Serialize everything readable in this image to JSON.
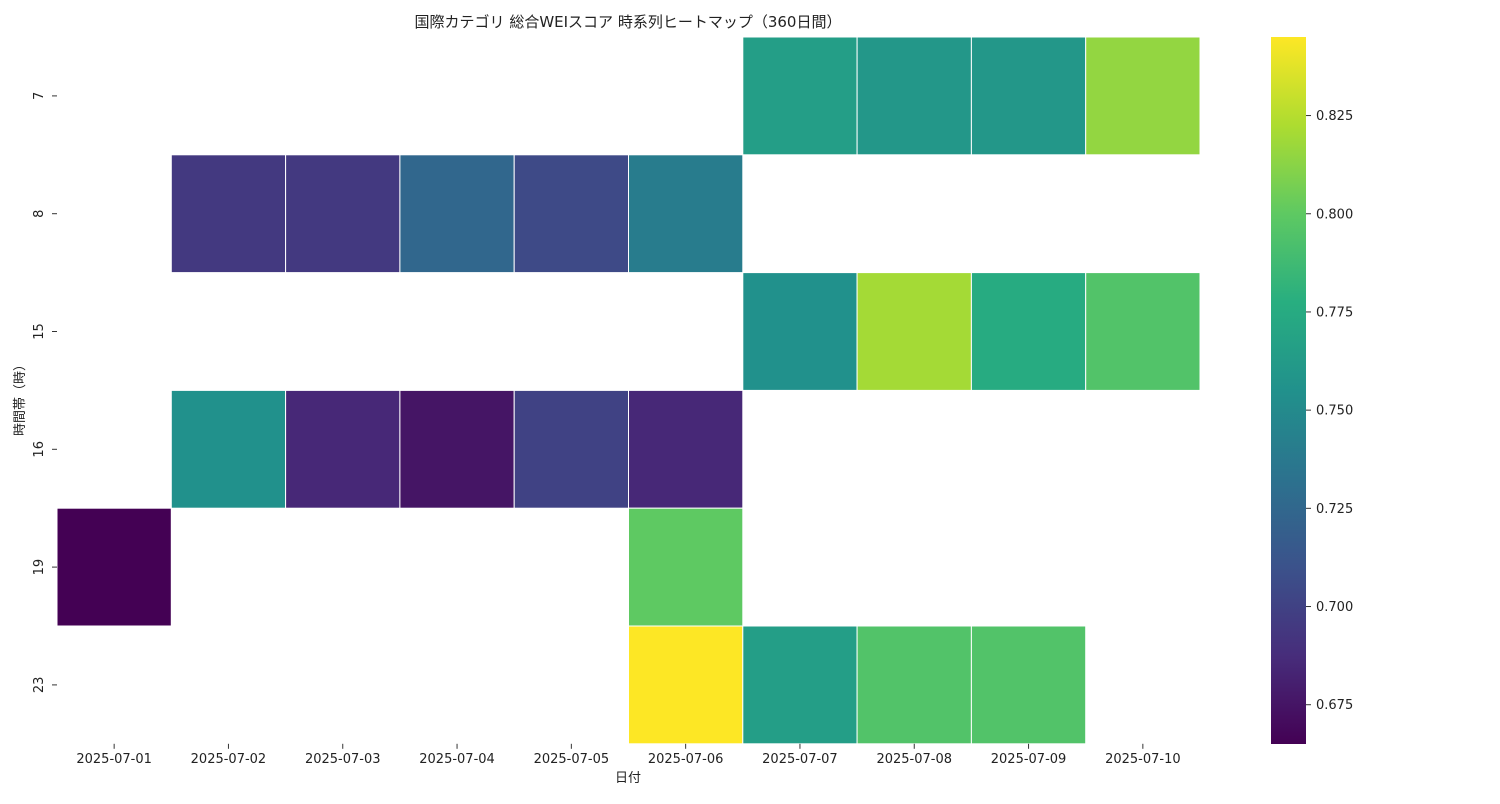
{
  "chart_data": {
    "type": "heatmap",
    "title": "国際カテゴリ 総合WEIスコア 時系列ヒートマップ（360日間）",
    "xlabel": "日付",
    "ylabel": "時間帯（時）",
    "x": [
      "2025-07-01",
      "2025-07-02",
      "2025-07-03",
      "2025-07-04",
      "2025-07-05",
      "2025-07-06",
      "2025-07-07",
      "2025-07-08",
      "2025-07-09",
      "2025-07-10"
    ],
    "y": [
      "7",
      "8",
      "15",
      "16",
      "19",
      "23"
    ],
    "values": [
      [
        null,
        null,
        null,
        null,
        null,
        null,
        0.765,
        0.76,
        0.76,
        0.815
      ],
      [
        null,
        0.695,
        0.695,
        0.725,
        0.705,
        0.74,
        null,
        null,
        null,
        null
      ],
      [
        null,
        null,
        null,
        null,
        null,
        null,
        0.755,
        0.82,
        0.775,
        0.795
      ],
      [
        null,
        0.755,
        0.685,
        0.675,
        0.7,
        0.685,
        null,
        null,
        null,
        null
      ],
      [
        0.665,
        null,
        null,
        null,
        null,
        0.8,
        null,
        null,
        null,
        null
      ],
      [
        null,
        null,
        null,
        null,
        null,
        0.845,
        0.765,
        0.795,
        0.795,
        null
      ]
    ],
    "colorbar": {
      "colormap": "viridis",
      "range": [
        0.665,
        0.845
      ],
      "ticks": [
        0.675,
        0.7,
        0.725,
        0.75,
        0.775,
        0.8,
        0.825
      ],
      "tick_labels": [
        "0.675",
        "0.700",
        "0.725",
        "0.750",
        "0.775",
        "0.800",
        "0.825"
      ]
    },
    "missing_cells": "blank",
    "grid": false,
    "legend": "colorbar-right"
  }
}
